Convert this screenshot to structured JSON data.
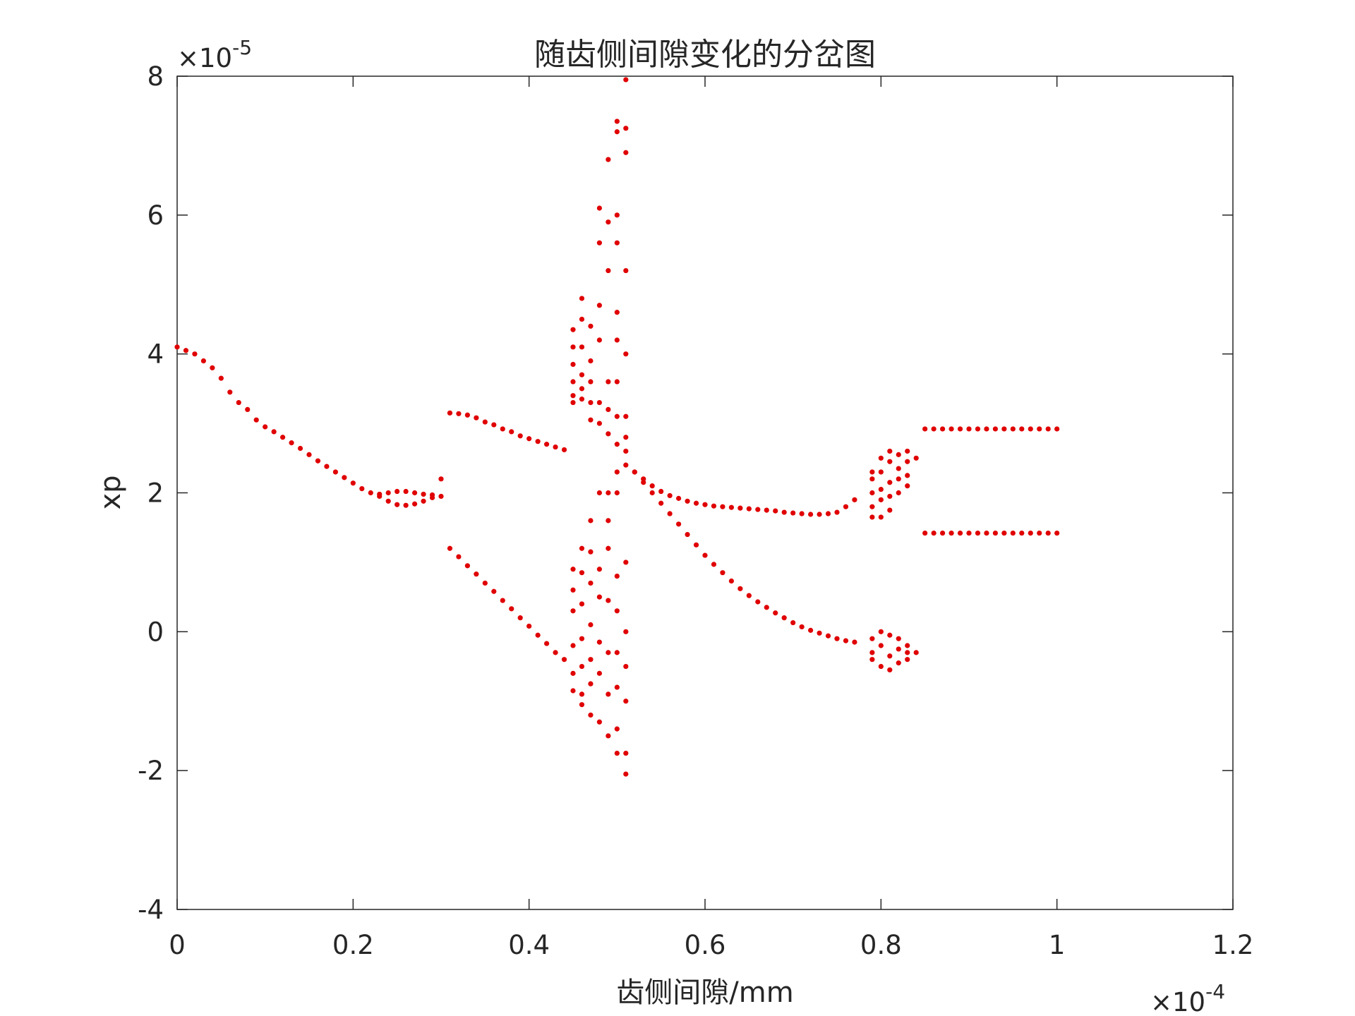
{
  "chart_data": {
    "type": "scatter",
    "title": "随齿侧间隙变化的分岔图",
    "x_label": "齿侧间隙/mm",
    "y_label": "xp",
    "x_scale_base": "×10",
    "x_scale_exponent": "-4",
    "y_scale_base": "×10",
    "y_scale_exponent": "-5",
    "color": "#e00000",
    "xlim": [
      0,
      1.2
    ],
    "xticks": [
      0,
      0.2,
      0.4,
      0.6,
      0.8,
      1,
      1.2
    ],
    "ylim": [
      -4,
      8
    ],
    "yticks": [
      -4,
      -2,
      0,
      2,
      4,
      6,
      8
    ],
    "grid": false,
    "x": [
      0,
      0.01,
      0.02,
      0.03,
      0.04,
      0.05,
      0.06,
      0.07,
      0.08,
      0.09,
      0.1,
      0.11,
      0.12,
      0.13,
      0.14,
      0.15,
      0.16,
      0.17,
      0.18,
      0.19,
      0.2,
      0.21,
      0.22,
      0.23,
      0.24,
      0.25,
      0.26,
      0.27,
      0.28,
      0.29,
      0.3,
      0.23,
      0.24,
      0.25,
      0.26,
      0.27,
      0.28,
      0.29,
      0.3,
      0.31,
      0.32,
      0.33,
      0.34,
      0.35,
      0.36,
      0.37,
      0.38,
      0.39,
      0.4,
      0.41,
      0.42,
      0.43,
      0.44,
      0.31,
      0.32,
      0.33,
      0.34,
      0.35,
      0.36,
      0.37,
      0.38,
      0.39,
      0.4,
      0.41,
      0.42,
      0.43,
      0.44,
      0.45,
      0.45,
      0.45,
      0.45,
      0.45,
      0.45,
      0.45,
      0.45,
      0.45,
      0.45,
      0.45,
      0.45,
      0.46,
      0.46,
      0.46,
      0.46,
      0.46,
      0.46,
      0.46,
      0.46,
      0.46,
      0.46,
      0.46,
      0.46,
      0.46,
      0.47,
      0.47,
      0.47,
      0.47,
      0.47,
      0.47,
      0.47,
      0.47,
      0.47,
      0.47,
      0.47,
      0.47,
      0.48,
      0.48,
      0.48,
      0.48,
      0.48,
      0.48,
      0.48,
      0.48,
      0.48,
      0.48,
      0.48,
      0.48,
      0.49,
      0.49,
      0.49,
      0.49,
      0.49,
      0.49,
      0.49,
      0.49,
      0.49,
      0.49,
      0.49,
      0.49,
      0.49,
      0.5,
      0.5,
      0.5,
      0.5,
      0.5,
      0.5,
      0.5,
      0.5,
      0.5,
      0.5,
      0.5,
      0.5,
      0.5,
      0.5,
      0.5,
      0.5,
      0.5,
      0.51,
      0.51,
      0.51,
      0.51,
      0.51,
      0.51,
      0.51,
      0.51,
      0.51,
      0.51,
      0.51,
      0.51,
      0.51,
      0.51,
      0.51,
      0.52,
      0.53,
      0.54,
      0.55,
      0.56,
      0.57,
      0.58,
      0.59,
      0.6,
      0.61,
      0.62,
      0.63,
      0.64,
      0.65,
      0.66,
      0.67,
      0.68,
      0.69,
      0.7,
      0.71,
      0.72,
      0.73,
      0.74,
      0.75,
      0.76,
      0.77,
      0.52,
      0.53,
      0.54,
      0.55,
      0.56,
      0.57,
      0.58,
      0.59,
      0.6,
      0.61,
      0.62,
      0.63,
      0.64,
      0.65,
      0.66,
      0.67,
      0.68,
      0.69,
      0.7,
      0.71,
      0.72,
      0.73,
      0.74,
      0.75,
      0.76,
      0.77,
      0.79,
      0.79,
      0.79,
      0.79,
      0.79,
      0.79,
      0.79,
      0.79,
      0.8,
      0.8,
      0.8,
      0.8,
      0.8,
      0.8,
      0.8,
      0.8,
      0.81,
      0.81,
      0.81,
      0.81,
      0.81,
      0.81,
      0.81,
      0.81,
      0.82,
      0.82,
      0.82,
      0.82,
      0.82,
      0.82,
      0.82,
      0.83,
      0.83,
      0.83,
      0.83,
      0.83,
      0.83,
      0.83,
      0.84,
      0.84,
      0.85,
      0.86,
      0.87,
      0.88,
      0.89,
      0.9,
      0.91,
      0.92,
      0.93,
      0.94,
      0.95,
      0.96,
      0.97,
      0.98,
      0.99,
      1,
      0.85,
      0.86,
      0.87,
      0.88,
      0.89,
      0.9,
      0.91,
      0.92,
      0.93,
      0.94,
      0.95,
      0.96,
      0.97,
      0.98,
      0.99,
      1
    ],
    "values": [
      4.1,
      4.05,
      4.0,
      3.9,
      3.8,
      3.65,
      3.45,
      3.3,
      3.2,
      3.05,
      2.95,
      2.88,
      2.8,
      2.72,
      2.64,
      2.55,
      2.46,
      2.38,
      2.3,
      2.22,
      2.14,
      2.06,
      2.0,
      1.98,
      2.0,
      2.02,
      2.02,
      2.0,
      1.98,
      1.97,
      2.2,
      1.95,
      1.88,
      1.83,
      1.82,
      1.84,
      1.88,
      1.93,
      1.95,
      3.15,
      3.14,
      3.12,
      3.08,
      3.02,
      2.98,
      2.92,
      2.88,
      2.82,
      2.78,
      2.74,
      2.7,
      2.66,
      2.62,
      1.2,
      1.08,
      0.95,
      0.83,
      0.7,
      0.58,
      0.45,
      0.33,
      0.2,
      0.08,
      -0.05,
      -0.17,
      -0.3,
      -0.4,
      4.35,
      4.1,
      3.85,
      3.6,
      3.4,
      3.3,
      0.9,
      0.6,
      0.3,
      -0.2,
      -0.6,
      -0.85,
      4.8,
      4.5,
      4.1,
      3.7,
      3.5,
      3.35,
      1.2,
      0.85,
      0.4,
      -0.1,
      -0.5,
      -0.9,
      -1.05,
      4.4,
      3.9,
      3.6,
      3.3,
      3.05,
      1.6,
      1.15,
      0.7,
      0.1,
      -0.4,
      -0.75,
      -1.2,
      6.1,
      5.6,
      4.7,
      4.2,
      3.3,
      3.0,
      2.0,
      0.9,
      0.5,
      -0.15,
      -0.6,
      -1.3,
      6.8,
      5.9,
      5.2,
      3.6,
      3.2,
      2.85,
      2.0,
      1.6,
      1.2,
      0.45,
      -0.3,
      -0.9,
      -1.5,
      7.35,
      7.2,
      6.0,
      5.6,
      4.6,
      4.2,
      3.6,
      3.1,
      2.7,
      2.3,
      2.0,
      0.8,
      0.3,
      -0.3,
      -0.8,
      -1.4,
      -1.75,
      7.95,
      7.25,
      6.9,
      5.2,
      4.0,
      3.1,
      2.8,
      2.6,
      2.4,
      1.0,
      0.0,
      -0.5,
      -1.0,
      -1.75,
      -2.05,
      2.3,
      2.2,
      2.1,
      2.02,
      1.96,
      1.92,
      1.88,
      1.85,
      1.83,
      1.81,
      1.8,
      1.79,
      1.78,
      1.77,
      1.76,
      1.75,
      1.74,
      1.72,
      1.71,
      1.7,
      1.69,
      1.69,
      1.7,
      1.72,
      1.8,
      1.9,
      2.3,
      2.15,
      2.0,
      1.85,
      1.7,
      1.55,
      1.4,
      1.25,
      1.1,
      0.97,
      0.85,
      0.73,
      0.62,
      0.52,
      0.43,
      0.35,
      0.27,
      0.2,
      0.13,
      0.07,
      0.02,
      -0.02,
      -0.06,
      -0.1,
      -0.13,
      -0.15,
      1.65,
      1.8,
      2.0,
      2.2,
      2.3,
      -0.1,
      -0.3,
      -0.4,
      1.65,
      1.9,
      2.05,
      2.3,
      2.5,
      0,
      -0.2,
      -0.5,
      1.75,
      1.95,
      2.15,
      2.45,
      2.6,
      -0.05,
      -0.35,
      -0.55,
      2.0,
      2.2,
      2.35,
      2.55,
      -0.1,
      -0.25,
      -0.45,
      2.1,
      2.25,
      2.45,
      2.6,
      -0.2,
      -0.3,
      -0.4,
      2.5,
      -0.3,
      2.92,
      2.92,
      2.92,
      2.92,
      2.92,
      2.92,
      2.92,
      2.92,
      2.92,
      2.92,
      2.92,
      2.92,
      2.92,
      2.92,
      2.92,
      2.92,
      1.42,
      1.42,
      1.42,
      1.42,
      1.42,
      1.42,
      1.42,
      1.42,
      1.42,
      1.42,
      1.42,
      1.42,
      1.42,
      1.42,
      1.42,
      1.42
    ]
  }
}
